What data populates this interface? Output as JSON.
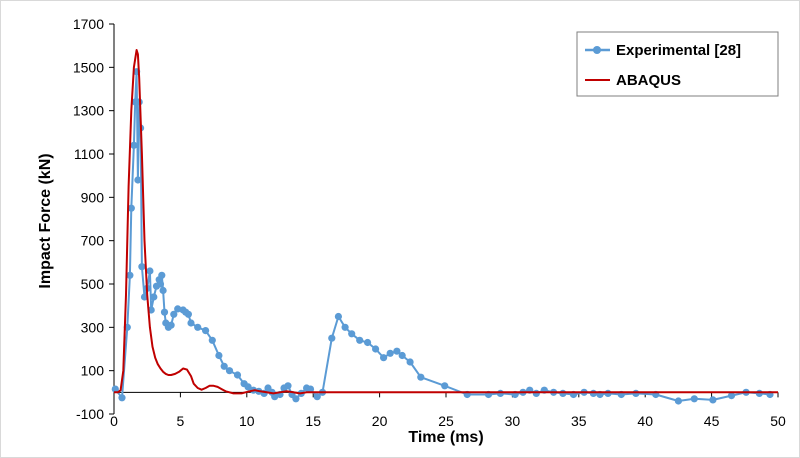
{
  "chart_data": {
    "type": "line",
    "title": "",
    "xlabel": "Time (ms)",
    "ylabel": "Impact Force (kN)",
    "xlim": [
      0,
      50
    ],
    "ylim": [
      -100,
      1700
    ],
    "xticks": [
      0,
      5,
      10,
      15,
      20,
      25,
      30,
      35,
      40,
      45,
      50
    ],
    "yticks": [
      -100,
      100,
      300,
      500,
      700,
      900,
      1100,
      1300,
      1500,
      1700
    ],
    "grid": false,
    "legend": "top-right",
    "series": [
      {
        "name": "Experimental [28]",
        "color": "#5b9bd5",
        "marker": "circle",
        "x": [
          0.1,
          0.6,
          1.0,
          1.2,
          1.3,
          1.5,
          1.6,
          1.7,
          1.8,
          1.9,
          2.0,
          2.1,
          2.3,
          2.5,
          2.7,
          2.8,
          3.0,
          3.2,
          3.4,
          3.5,
          3.6,
          3.7,
          3.8,
          3.9,
          4.1,
          4.3,
          4.5,
          4.8,
          5.2,
          5.4,
          5.6,
          5.8,
          6.3,
          6.9,
          7.4,
          7.9,
          8.3,
          8.7,
          9.3,
          9.8,
          10.1,
          10.5,
          10.9,
          11.3,
          11.6,
          11.9,
          12.1,
          12.5,
          12.8,
          13.1,
          13.4,
          13.7,
          14.1,
          14.5,
          14.8,
          15.3,
          15.7,
          16.4,
          16.9,
          17.4,
          17.9,
          18.5,
          19.1,
          19.7,
          20.3,
          20.8,
          21.3,
          21.7,
          22.3,
          23.1,
          24.9,
          26.6,
          28.2,
          29.1,
          30.2,
          30.8,
          31.3,
          31.8,
          32.4,
          33.1,
          33.8,
          34.6,
          35.4,
          36.1,
          36.6,
          37.2,
          38.2,
          39.3,
          40.8,
          42.5,
          43.7,
          45.1,
          46.5,
          47.6,
          48.6,
          49.4
        ],
        "y": [
          15,
          -25,
          300,
          540,
          850,
          1140,
          1340,
          1480,
          980,
          1340,
          1220,
          580,
          440,
          480,
          560,
          380,
          440,
          490,
          520,
          500,
          540,
          470,
          370,
          320,
          300,
          310,
          360,
          385,
          380,
          370,
          360,
          320,
          300,
          285,
          240,
          170,
          120,
          100,
          80,
          40,
          25,
          10,
          5,
          -5,
          20,
          0,
          -20,
          -10,
          20,
          30,
          -10,
          -30,
          -5,
          20,
          15,
          -20,
          0,
          250,
          350,
          300,
          270,
          240,
          230,
          200,
          160,
          180,
          190,
          170,
          140,
          70,
          30,
          -10,
          -10,
          -5,
          -10,
          0,
          10,
          -5,
          10,
          0,
          -5,
          -10,
          0,
          -5,
          -10,
          -5,
          -10,
          -5,
          -10,
          -40,
          -30,
          -35,
          -15,
          0,
          -5,
          -10
        ]
      },
      {
        "name": "ABAQUS",
        "color": "#c00000",
        "marker": "none",
        "x": [
          0,
          0.3,
          0.5,
          0.7,
          0.9,
          1.1,
          1.3,
          1.5,
          1.7,
          1.8,
          1.9,
          2.1,
          2.3,
          2.5,
          2.7,
          2.9,
          3.1,
          3.3,
          3.5,
          3.7,
          3.9,
          4.1,
          4.3,
          4.6,
          4.9,
          5.2,
          5.5,
          5.8,
          6.0,
          6.3,
          6.6,
          6.9,
          7.2,
          7.5,
          7.8,
          8.1,
          8.4,
          8.7,
          9.0,
          9.3,
          9.6,
          9.9,
          10.2,
          10.6,
          11.0,
          11.5,
          12.0,
          12.5,
          13.0,
          13.5,
          14.0,
          14.5,
          15.0,
          16.0,
          18.0,
          20.0,
          22.0,
          25.0,
          30.0,
          35.0,
          40.0,
          45.0,
          50.0
        ],
        "y": [
          0,
          0,
          10,
          100,
          450,
          950,
          1300,
          1500,
          1580,
          1560,
          1450,
          1100,
          700,
          450,
          300,
          210,
          160,
          130,
          110,
          95,
          85,
          80,
          80,
          85,
          95,
          110,
          105,
          75,
          40,
          20,
          12,
          20,
          30,
          30,
          25,
          15,
          5,
          0,
          -5,
          -5,
          -5,
          0,
          5,
          10,
          5,
          0,
          -5,
          0,
          5,
          0,
          -5,
          0,
          0,
          0,
          0,
          0,
          0,
          0,
          0,
          0,
          0,
          0,
          0
        ]
      }
    ]
  }
}
